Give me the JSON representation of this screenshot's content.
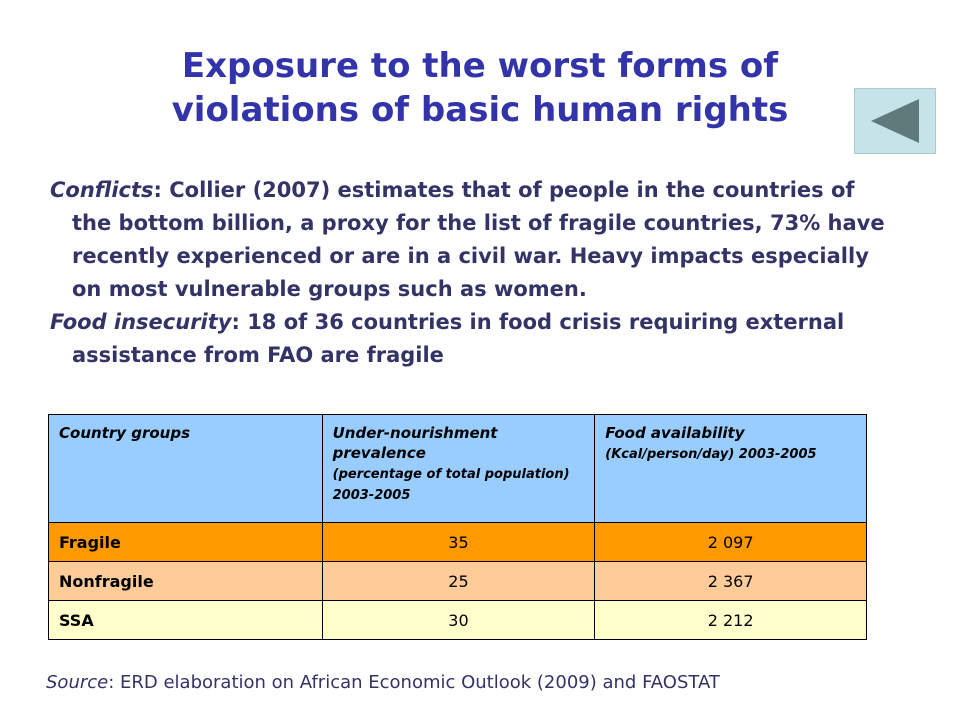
{
  "slide": {
    "title_line1": "Exposure to the worst forms of",
    "title_line2": "violations of basic human rights",
    "nav_button_icon": "back-triangle-icon",
    "colors": {
      "title": "#3333aa",
      "body_text": "#333366",
      "nav_button_bg": "#c5e3e8",
      "nav_triangle": "#5f7a7a",
      "table_header": "#99ccff",
      "row_fragile": "#ff9900",
      "row_nonfragile": "#ffcc99",
      "row_ssa": "#ffffcc"
    }
  },
  "bullets": [
    {
      "lead": "Conflicts",
      "text": ": Collier (2007) estimates that of people in the countries of the bottom billion, a proxy for the list of fragile countries, 73% have recently experienced or are in a civil war. Heavy impacts especially on most vulnerable groups such as women."
    },
    {
      "lead": "Food insecurity",
      "text": ": 18 of 36 countries in food crisis requiring external assistance from FAO are fragile"
    }
  ],
  "table": {
    "headers": {
      "col1": "Country groups",
      "col2_main": "Under-nourishment prevalence",
      "col2_sub": "(percentage of total population) 2003-2005",
      "col3_main": "Food availability",
      "col3_sub": "(Kcal/person/day) 2003-2005"
    },
    "rows": [
      {
        "group": "Fragile",
        "undernourishment": "35",
        "food_availability": "2 097"
      },
      {
        "group": "Nonfragile",
        "undernourishment": "25",
        "food_availability": "2 367"
      },
      {
        "group": "SSA",
        "undernourishment": "30",
        "food_availability": "2 212"
      }
    ]
  },
  "source": {
    "lead": "Source",
    "text": ": ERD elaboration on African Economic Outlook (2009) and FAOSTAT"
  }
}
